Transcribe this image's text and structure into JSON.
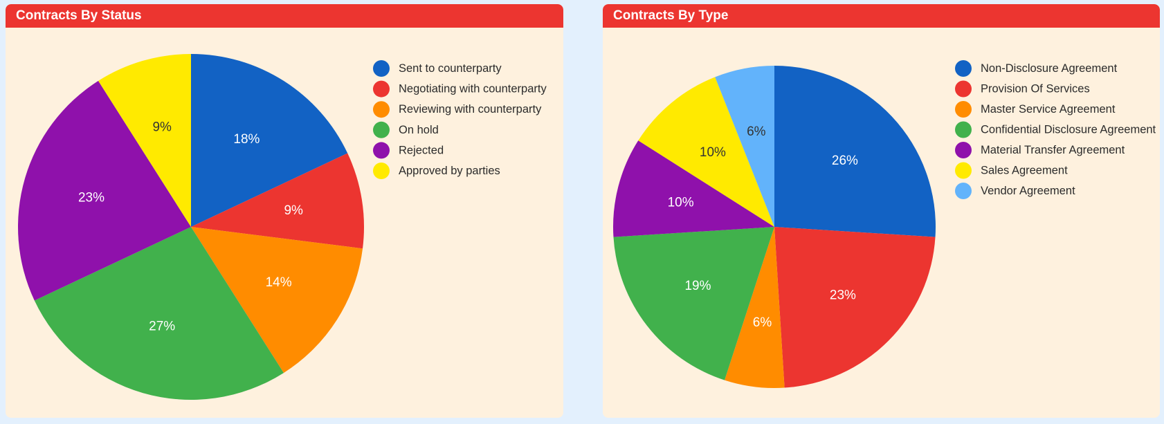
{
  "chart_data": [
    {
      "type": "pie",
      "title": "Contracts By Status",
      "categories": [
        "Sent to counterparty",
        "Negotiating with counterparty",
        "Reviewing with counterparty",
        "On hold",
        "Rejected",
        "Approved by parties"
      ],
      "values": [
        18,
        9,
        14,
        27,
        23,
        9
      ],
      "labels": [
        "18%",
        "9%",
        "14%",
        "27%",
        "23%",
        "9%"
      ],
      "colors": [
        "#1262c4",
        "#ec3530",
        "#ff8c00",
        "#41b14c",
        "#8f11ab",
        "#ffea00"
      ],
      "label_colors": [
        "#ffffff",
        "#ffffff",
        "#ffffff",
        "#ffffff",
        "#ffffff",
        "#333333"
      ],
      "legend": "right"
    },
    {
      "type": "pie",
      "title": "Contracts By Type",
      "categories": [
        "Non-Disclosure Agreement",
        "Provision Of Services",
        "Master Service Agreement",
        "Confidential Disclosure Agreement",
        "Material Transfer Agreement",
        "Sales Agreement",
        "Vendor Agreement"
      ],
      "values": [
        26,
        23,
        6,
        19,
        10,
        10,
        6
      ],
      "labels": [
        "26%",
        "23%",
        "6%",
        "19%",
        "10%",
        "10%",
        "6%"
      ],
      "colors": [
        "#1262c4",
        "#ec3530",
        "#ff8c00",
        "#41b14c",
        "#8f11ab",
        "#ffea00",
        "#62b3fb"
      ],
      "label_colors": [
        "#ffffff",
        "#ffffff",
        "#ffffff",
        "#ffffff",
        "#ffffff",
        "#333333",
        "#333333"
      ],
      "legend": "right"
    }
  ]
}
